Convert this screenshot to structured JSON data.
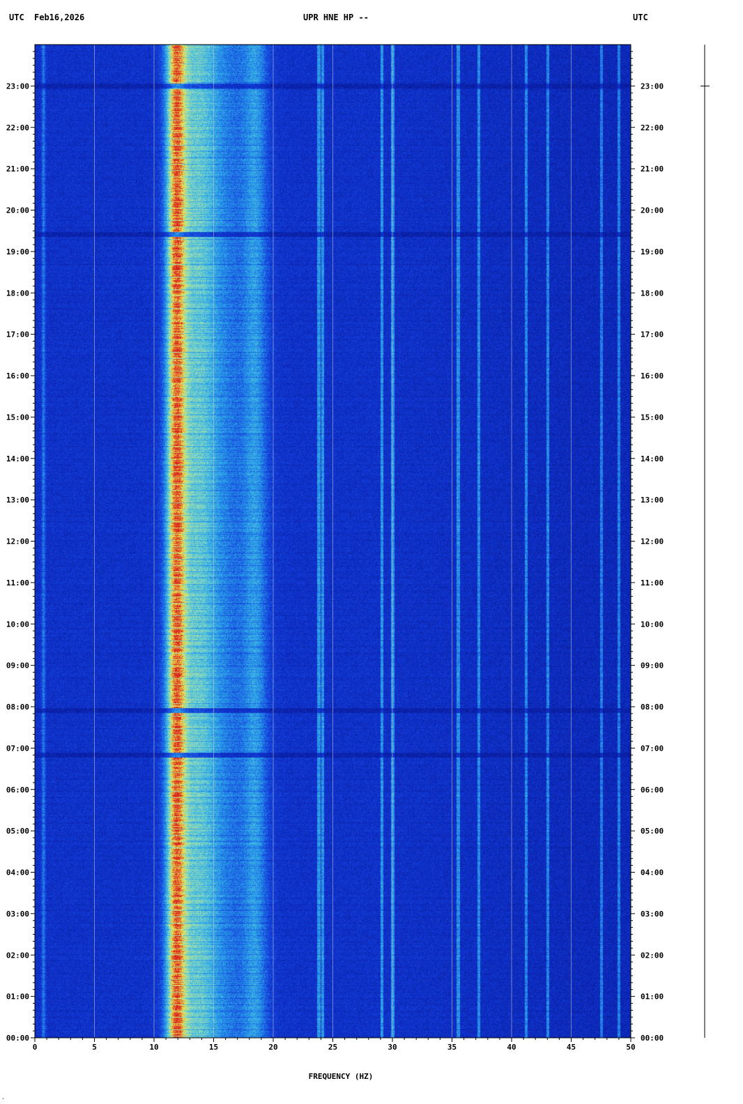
{
  "header": {
    "tz_left": "UTC",
    "date": "Feb16,2026",
    "station": "UPR HNE HP --",
    "tz_right": "UTC"
  },
  "colors": {
    "background_low": "#0a1fb4",
    "mid": "#33b7f0",
    "high": "#f2e84a",
    "peak": "#d81e1e",
    "gridline": "#c9c9c9"
  },
  "chart_data": {
    "type": "heatmap",
    "title": "UPR HNE HP --",
    "xlabel": "FREQUENCY (HZ)",
    "ylabel": "",
    "xlim": [
      0,
      50
    ],
    "ylim": [
      "00:00",
      "24:00"
    ],
    "x_ticks": [
      "0",
      "5",
      "10",
      "15",
      "20",
      "25",
      "30",
      "35",
      "40",
      "45",
      "50"
    ],
    "y_ticks": [
      "00:00",
      "01:00",
      "02:00",
      "03:00",
      "04:00",
      "05:00",
      "06:00",
      "07:00",
      "08:00",
      "09:00",
      "10:00",
      "11:00",
      "12:00",
      "13:00",
      "14:00",
      "15:00",
      "16:00",
      "17:00",
      "18:00",
      "19:00",
      "20:00",
      "21:00",
      "22:00",
      "23:00"
    ],
    "energy_bands_hz": [
      {
        "center": 11.8,
        "width": 2.2,
        "level": 1.0
      },
      {
        "center": 13.5,
        "width": 4.5,
        "level": 0.55
      },
      {
        "center": 18.5,
        "width": 2.5,
        "level": 0.35
      },
      {
        "center": 16.0,
        "width": 7.0,
        "level": 0.3
      },
      {
        "center": 0.7,
        "width": 0.4,
        "level": 0.35
      }
    ],
    "narrow_lines_hz": [
      23.8,
      24.1,
      29.1,
      30.0,
      35.5,
      37.2,
      41.2,
      43.0,
      47.5,
      49.0
    ],
    "dark_gaps_utc": [
      "06:50",
      "07:55",
      "19:25",
      "23:00"
    ],
    "grid": true
  }
}
